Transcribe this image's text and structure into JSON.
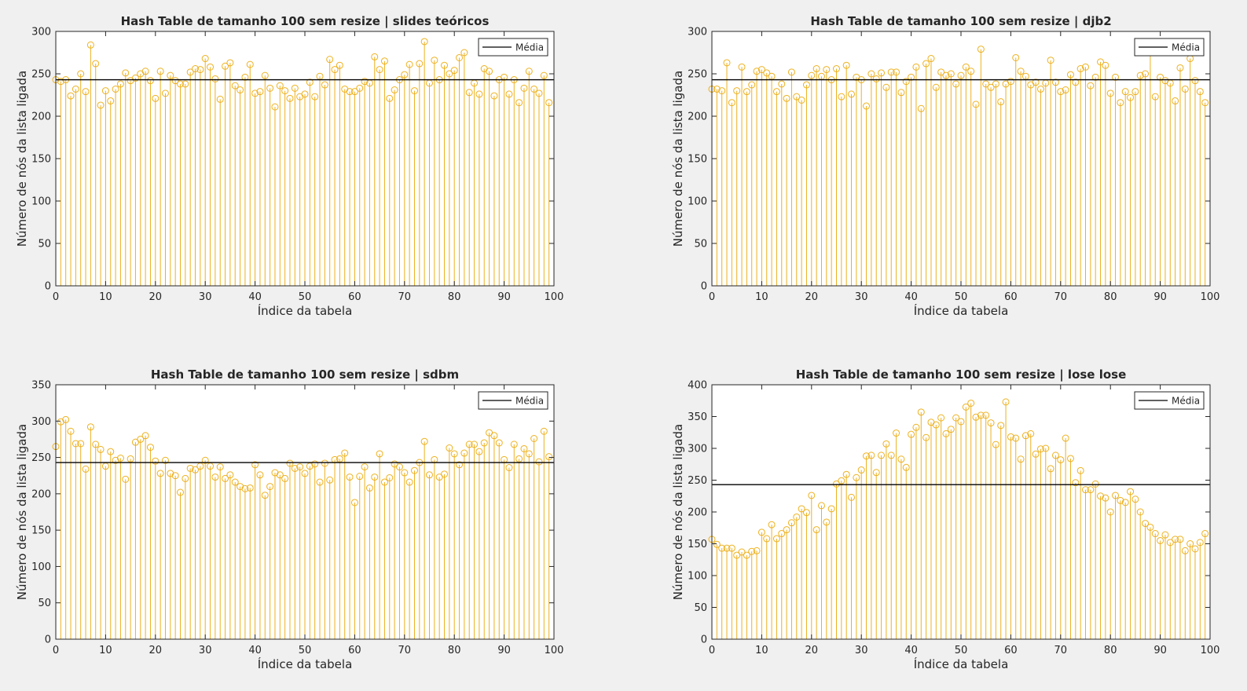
{
  "chart_data": [
    {
      "type": "stem",
      "title": "Hash Table de tamanho 100 sem resize | slides teóricos",
      "xlabel": "Índice da tabela",
      "ylabel": "Número de nós da lista ligada",
      "xlim": [
        0,
        100
      ],
      "ylim": [
        0,
        300
      ],
      "xticks": [
        0,
        10,
        20,
        30,
        40,
        50,
        60,
        70,
        80,
        90,
        100
      ],
      "yticks": [
        0,
        50,
        100,
        150,
        200,
        250,
        300
      ],
      "grid": false,
      "legend": {
        "placement": "top-right",
        "entries": [
          "Média"
        ]
      },
      "mean": 243,
      "stem_color": "#EDB120",
      "mean_color": "#000000",
      "x_start": 0,
      "values": [
        243,
        241,
        243,
        224,
        232,
        250,
        229,
        284,
        262,
        213,
        230,
        218,
        232,
        238,
        251,
        242,
        245,
        250,
        253,
        242,
        221,
        253,
        227,
        248,
        242,
        238,
        238,
        252,
        256,
        255,
        268,
        258,
        244,
        220,
        259,
        263,
        236,
        231,
        246,
        261,
        227,
        229,
        248,
        233,
        211,
        236,
        230,
        221,
        233,
        223,
        226,
        240,
        223,
        247,
        237,
        267,
        255,
        260,
        232,
        229,
        229,
        233,
        241,
        239,
        270,
        255,
        265,
        221,
        231,
        243,
        249,
        261,
        230,
        262,
        288,
        239,
        266,
        243,
        260,
        250,
        254,
        269,
        275,
        228,
        239,
        226,
        256,
        253,
        224,
        243,
        246,
        226,
        243,
        216,
        233,
        253,
        232,
        227,
        248,
        216
      ]
    },
    {
      "type": "stem",
      "title": "Hash Table de tamanho 100 sem resize | djb2",
      "xlabel": "Índice da tabela",
      "ylabel": "Número de nós da lista ligada",
      "xlim": [
        0,
        100
      ],
      "ylim": [
        0,
        300
      ],
      "xticks": [
        0,
        10,
        20,
        30,
        40,
        50,
        60,
        70,
        80,
        90,
        100
      ],
      "yticks": [
        0,
        50,
        100,
        150,
        200,
        250,
        300
      ],
      "grid": false,
      "legend": {
        "placement": "top-right",
        "entries": [
          "Média"
        ]
      },
      "mean": 243,
      "stem_color": "#EDB120",
      "mean_color": "#000000",
      "x_start": 0,
      "values": [
        232,
        232,
        230,
        263,
        216,
        230,
        258,
        229,
        237,
        253,
        255,
        251,
        247,
        229,
        238,
        221,
        252,
        223,
        219,
        237,
        248,
        256,
        247,
        255,
        243,
        256,
        223,
        260,
        226,
        246,
        243,
        212,
        250,
        244,
        251,
        234,
        252,
        252,
        228,
        241,
        246,
        258,
        209,
        262,
        268,
        234,
        252,
        248,
        250,
        238,
        248,
        258,
        253,
        214,
        279,
        238,
        234,
        238,
        217,
        238,
        241,
        269,
        253,
        247,
        237,
        240,
        232,
        239,
        266,
        240,
        229,
        231,
        249,
        240,
        256,
        258,
        236,
        246,
        264,
        260,
        227,
        246,
        216,
        229,
        222,
        229,
        248,
        250,
        276,
        223,
        246,
        242,
        239,
        218,
        257,
        232,
        268,
        242,
        229,
        216
      ]
    },
    {
      "type": "stem",
      "title": "Hash Table de tamanho 100 sem resize | sdbm",
      "xlabel": "Índice da tabela",
      "ylabel": "Número de nós da lista ligada",
      "xlim": [
        0,
        100
      ],
      "ylim": [
        0,
        350
      ],
      "xticks": [
        0,
        10,
        20,
        30,
        40,
        50,
        60,
        70,
        80,
        90,
        100
      ],
      "yticks": [
        0,
        50,
        100,
        150,
        200,
        250,
        300,
        350
      ],
      "grid": false,
      "legend": {
        "placement": "top-right",
        "entries": [
          "Média"
        ]
      },
      "mean": 243,
      "stem_color": "#EDB120",
      "mean_color": "#000000",
      "x_start": 0,
      "values": [
        265,
        299,
        302,
        286,
        269,
        269,
        234,
        292,
        268,
        261,
        238,
        258,
        246,
        249,
        220,
        248,
        271,
        275,
        280,
        264,
        245,
        228,
        246,
        228,
        225,
        202,
        221,
        235,
        233,
        238,
        246,
        238,
        223,
        237,
        221,
        226,
        216,
        210,
        207,
        208,
        240,
        226,
        198,
        210,
        229,
        226,
        221,
        242,
        235,
        237,
        228,
        238,
        241,
        216,
        242,
        219,
        247,
        248,
        256,
        223,
        188,
        224,
        237,
        208,
        223,
        255,
        216,
        222,
        241,
        237,
        229,
        216,
        232,
        243,
        272,
        226,
        247,
        223,
        227,
        263,
        255,
        240,
        256,
        268,
        268,
        258,
        270,
        284,
        280,
        270,
        247,
        236,
        268,
        248,
        262,
        255,
        276,
        244,
        286,
        251
      ]
    },
    {
      "type": "stem",
      "title": "Hash Table de tamanho 100 sem resize | lose lose",
      "xlabel": "Índice da tabela",
      "ylabel": "Número de nós da lista ligada",
      "xlim": [
        0,
        100
      ],
      "ylim": [
        0,
        400
      ],
      "xticks": [
        0,
        10,
        20,
        30,
        40,
        50,
        60,
        70,
        80,
        90,
        100
      ],
      "yticks": [
        0,
        50,
        100,
        150,
        200,
        250,
        300,
        350,
        400
      ],
      "grid": false,
      "legend": {
        "placement": "top-right",
        "entries": [
          "Média"
        ]
      },
      "mean": 243,
      "stem_color": "#EDB120",
      "mean_color": "#000000",
      "x_start": 0,
      "values": [
        157,
        149,
        143,
        143,
        143,
        132,
        137,
        132,
        138,
        139,
        168,
        158,
        180,
        158,
        166,
        172,
        183,
        192,
        205,
        199,
        226,
        172,
        210,
        184,
        205,
        244,
        249,
        259,
        223,
        254,
        266,
        288,
        289,
        262,
        289,
        307,
        289,
        324,
        283,
        270,
        322,
        333,
        357,
        317,
        341,
        337,
        348,
        323,
        330,
        348,
        342,
        365,
        371,
        349,
        352,
        352,
        340,
        306,
        336,
        373,
        318,
        316,
        283,
        320,
        323,
        291,
        299,
        300,
        268,
        289,
        282,
        316,
        284,
        246,
        265,
        235,
        235,
        244,
        225,
        222,
        200,
        226,
        218,
        215,
        232,
        220,
        200,
        182,
        176,
        166,
        155,
        164,
        152,
        157,
        157,
        139,
        150,
        142,
        152,
        166
      ]
    }
  ]
}
